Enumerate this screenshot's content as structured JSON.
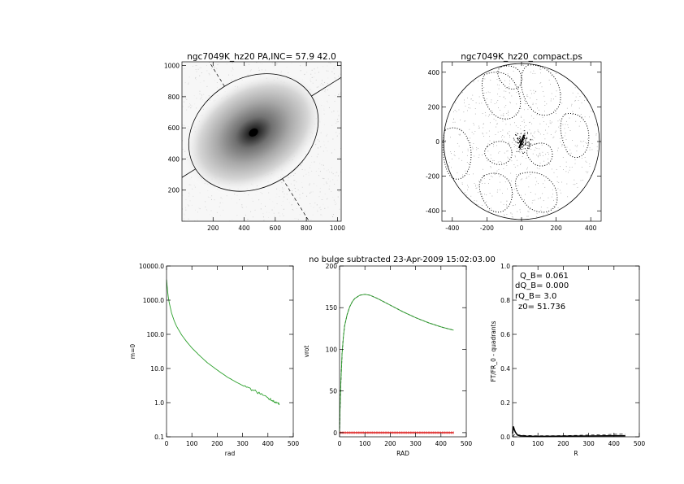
{
  "header_note": "no bulge subtracted   23-Apr-2009 15:02:03.00",
  "chart_data": [
    {
      "type": "image",
      "title": "ngc7049K_hz20 PA,INC= 57.9 42.0",
      "xlim": [
        0,
        1024
      ],
      "ylim": [
        0,
        1024
      ],
      "xticks": [
        "200",
        "400",
        "600",
        "800",
        "1000"
      ],
      "yticks": [
        "200",
        "400",
        "600",
        "800",
        "1000"
      ],
      "center": [
        460,
        570
      ],
      "ellipse": {
        "semi_major": 440,
        "semi_minor": 350,
        "pa_deg": 57.9,
        "inc_deg": 42.0
      }
    },
    {
      "type": "contour",
      "title": "ngc7049K_hz20_compact.ps",
      "xlim": [
        -460,
        460
      ],
      "ylim": [
        -460,
        460
      ],
      "xticks": [
        "-400",
        "-200",
        "0",
        "200",
        "400"
      ],
      "yticks": [
        "-400",
        "-200",
        "0",
        "200",
        "400"
      ],
      "boundary_radius": 450
    },
    {
      "type": "line",
      "xlabel": "rad",
      "ylabel": "m=0",
      "xlim": [
        0,
        500
      ],
      "ylim": [
        0.1,
        10000
      ],
      "yscale": "log",
      "xticks": [
        "0",
        "100",
        "200",
        "300",
        "400",
        "500"
      ],
      "yticks": [
        "0.1",
        "1.0",
        "10.0",
        "100.0",
        "1000.0",
        "10000.0"
      ],
      "series_color": "#2ca02c",
      "x": [
        0,
        2,
        5,
        10,
        15,
        20,
        30,
        40,
        60,
        80,
        100,
        130,
        160,
        200,
        240,
        280,
        320,
        360,
        400,
        420,
        440,
        445
      ],
      "y": [
        4000,
        2800,
        1600,
        900,
        600,
        420,
        250,
        170,
        95,
        60,
        40,
        24,
        15,
        9,
        5.6,
        3.8,
        2.7,
        2.0,
        1.4,
        1.15,
        0.95,
        0.85
      ]
    },
    {
      "type": "line",
      "xlabel": "RAD",
      "ylabel": "vrot",
      "xlim": [
        0,
        500
      ],
      "ylim": [
        -5,
        200
      ],
      "xticks": [
        "0",
        "100",
        "200",
        "300",
        "400",
        "500"
      ],
      "yticks": [
        "0",
        "50",
        "100",
        "150",
        "200"
      ],
      "series_colors": [
        "#2ca02c",
        "#000000",
        "#e03030"
      ],
      "x": [
        0,
        2,
        5,
        10,
        15,
        20,
        30,
        40,
        50,
        60,
        80,
        100,
        120,
        150,
        200,
        250,
        300,
        350,
        400,
        450
      ],
      "y": [
        0,
        28,
        60,
        95,
        115,
        128,
        142,
        151,
        157,
        161,
        165,
        166,
        165,
        161,
        153,
        145,
        138,
        132,
        127,
        123
      ],
      "baseline_y": 0
    },
    {
      "type": "line",
      "xlabel": "R",
      "ylabel": "FT/FR_0 - quadrants",
      "xlim": [
        0,
        500
      ],
      "ylim": [
        0,
        1
      ],
      "xticks": [
        "0",
        "100",
        "200",
        "300",
        "400",
        "500"
      ],
      "yticks": [
        "0.0",
        "0.2",
        "0.4",
        "0.6",
        "0.8",
        "1.0"
      ],
      "annotations": [
        "Q_B=  0.061",
        "dQ_B=  0.000",
        "rQ_B=    3.0",
        "z0= 51.736"
      ],
      "x": [
        0,
        3,
        6,
        10,
        15,
        20,
        30,
        50,
        80,
        120,
        200,
        300,
        400,
        445
      ],
      "y": [
        0.02,
        0.061,
        0.045,
        0.03,
        0.018,
        0.01,
        0.006,
        0.004,
        0.003,
        0.003,
        0.004,
        0.005,
        0.006,
        0.006
      ],
      "x2": [
        0,
        5,
        10,
        20,
        50,
        100,
        200,
        300,
        350,
        400,
        445
      ],
      "y2": [
        0.0,
        0.01,
        0.015,
        0.012,
        0.008,
        0.006,
        0.007,
        0.01,
        0.012,
        0.015,
        0.016
      ]
    }
  ]
}
